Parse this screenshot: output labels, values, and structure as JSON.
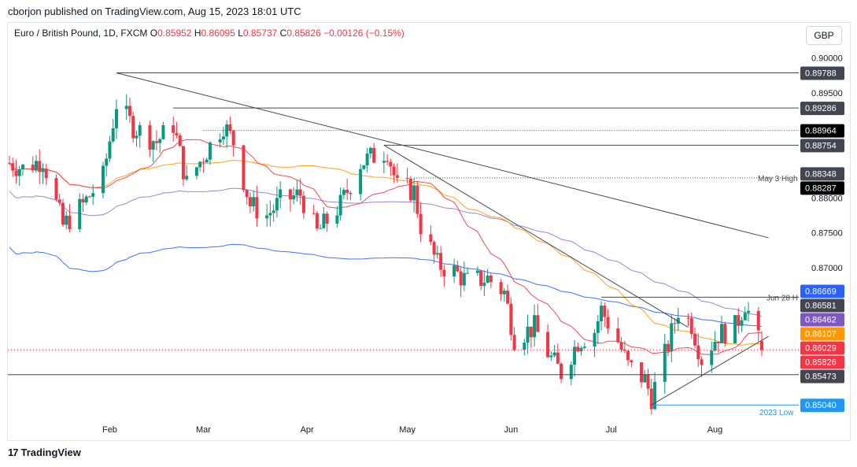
{
  "header": {
    "published": "cborjon published on TradingView.com, Aug 15, 2023 18:01 UTC",
    "symbol": "Euro / British Pound, 1D, FXCM",
    "open_label": "O",
    "open": "0.85952",
    "high_label": "H",
    "high": "0.86095",
    "low_label": "L",
    "low": "0.85737",
    "close_label": "C",
    "close": "0.85826",
    "change": "−0.00126 (−0.15%)",
    "currency": "GBP"
  },
  "footer": {
    "brand": "TradingView",
    "logo": "tradingview-logo-icon"
  },
  "colors": {
    "up": "#089981",
    "down": "#f23645",
    "ma_short": "#f23645",
    "ma_mid": "#ff9800",
    "ma_long": "#9575cd",
    "ma_200": "#2962ff",
    "trendline": "#434651",
    "low_line": "#2196f3"
  },
  "chart_data": {
    "type": "candlestick",
    "symbol": "EUR/GBP",
    "timeframe": "1D",
    "ylim": [
      0.8475,
      0.9021
    ],
    "y_ticks": [
      "0.90000",
      "0.89500",
      "0.88000",
      "0.87500",
      "0.87000"
    ],
    "x_ticks": [
      "Feb",
      "Mar",
      "Apr",
      "May",
      "Jun",
      "Jul",
      "Aug"
    ],
    "price_labels": [
      {
        "value": "0.89788",
        "color": "#434651"
      },
      {
        "value": "0.89286",
        "color": "#434651"
      },
      {
        "value": "0.88964",
        "color": "#000000"
      },
      {
        "value": "0.88754",
        "color": "#434651"
      },
      {
        "value": "0.88348",
        "color": "#434651"
      },
      {
        "value": "0.88287",
        "color": "#000000"
      },
      {
        "value": "0.86669",
        "color": "#2962ff"
      },
      {
        "value": "0.86581",
        "color": "#434651"
      },
      {
        "value": "0.86462",
        "color": "#7e57c2"
      },
      {
        "value": "0.86107",
        "color": "#ff9800"
      },
      {
        "value": "0.86029",
        "color": "#f23645"
      },
      {
        "value": "0.85826",
        "color": "#f23645"
      },
      {
        "value": "0.85473",
        "color": "#434651"
      },
      {
        "value": "0.85040",
        "color": "#2196f3"
      }
    ],
    "annotations": [
      {
        "text": "May 3 High",
        "value": 0.88287
      },
      {
        "text": "Jun 28 H",
        "value": 0.86581
      },
      {
        "text": "2023 Low",
        "value": 0.8504
      }
    ],
    "last_close": 0.85826,
    "session_close_points": [
      [
        "2023-01-02",
        0.885
      ],
      [
        "2023-01-06",
        0.8842
      ],
      [
        "2023-01-12",
        0.8855
      ],
      [
        "2023-01-18",
        0.876
      ],
      [
        "2023-01-24",
        0.879
      ],
      [
        "2023-01-30",
        0.883
      ],
      [
        "2023-02-03",
        0.8935
      ],
      [
        "2023-02-08",
        0.8902
      ],
      [
        "2023-02-15",
        0.888
      ],
      [
        "2023-02-20",
        0.8905
      ],
      [
        "2023-02-24",
        0.882
      ],
      [
        "2023-03-01",
        0.886
      ],
      [
        "2023-03-07",
        0.8905
      ],
      [
        "2023-03-10",
        0.888
      ],
      [
        "2023-03-15",
        0.879
      ],
      [
        "2023-03-20",
        0.8775
      ],
      [
        "2023-03-24",
        0.8795
      ],
      [
        "2023-03-30",
        0.8805
      ],
      [
        "2023-04-04",
        0.875
      ],
      [
        "2023-04-11",
        0.879
      ],
      [
        "2023-04-17",
        0.885
      ],
      [
        "2023-04-21",
        0.886
      ],
      [
        "2023-04-25",
        0.8868
      ],
      [
        "2023-04-28",
        0.8815
      ],
      [
        "2023-05-03",
        0.881
      ],
      [
        "2023-05-05",
        0.876
      ],
      [
        "2023-05-10",
        0.8705
      ],
      [
        "2023-05-15",
        0.8695
      ],
      [
        "2023-05-19",
        0.868
      ],
      [
        "2023-05-25",
        0.8685
      ],
      [
        "2023-05-30",
        0.8665
      ],
      [
        "2023-06-02",
        0.86
      ],
      [
        "2023-06-08",
        0.8615
      ],
      [
        "2023-06-13",
        0.857
      ],
      [
        "2023-06-16",
        0.855
      ],
      [
        "2023-06-21",
        0.8595
      ],
      [
        "2023-06-26",
        0.861
      ],
      [
        "2023-06-28",
        0.864
      ],
      [
        "2023-07-03",
        0.8595
      ],
      [
        "2023-07-06",
        0.856
      ],
      [
        "2023-07-11",
        0.854
      ],
      [
        "2023-07-13",
        0.8515
      ],
      [
        "2023-07-18",
        0.859
      ],
      [
        "2023-07-21",
        0.864
      ],
      [
        "2023-07-25",
        0.862
      ],
      [
        "2023-07-28",
        0.857
      ],
      [
        "2023-08-02",
        0.8605
      ],
      [
        "2023-08-07",
        0.8615
      ],
      [
        "2023-08-10",
        0.865
      ],
      [
        "2023-08-14",
        0.8595
      ],
      [
        "2023-08-15",
        0.85826
      ]
    ]
  }
}
